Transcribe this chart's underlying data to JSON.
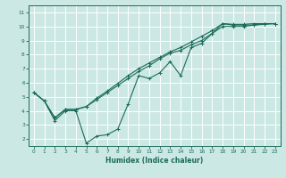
{
  "title": "",
  "xlabel": "Humidex (Indice chaleur)",
  "ylabel": "",
  "bg_color": "#cce8e4",
  "line_color": "#1a6b5a",
  "grid_color": "#ffffff",
  "xlim": [
    -0.5,
    23.5
  ],
  "ylim": [
    1.5,
    11.5
  ],
  "xticks": [
    0,
    1,
    2,
    3,
    4,
    5,
    6,
    7,
    8,
    9,
    10,
    11,
    12,
    13,
    14,
    15,
    16,
    17,
    18,
    19,
    20,
    21,
    22,
    23
  ],
  "yticks": [
    2,
    3,
    4,
    5,
    6,
    7,
    8,
    9,
    10,
    11
  ],
  "line1_x": [
    0,
    1,
    2,
    3,
    4,
    5,
    6,
    7,
    8,
    9,
    10,
    11,
    12,
    13,
    14,
    15,
    16,
    17,
    18,
    19,
    20,
    21,
    22,
    23
  ],
  "line1_y": [
    5.3,
    4.7,
    3.3,
    4.0,
    4.0,
    1.7,
    2.2,
    2.3,
    2.7,
    4.5,
    6.5,
    6.3,
    6.7,
    7.5,
    6.5,
    8.5,
    8.8,
    9.5,
    10.2,
    10.1,
    10.1,
    10.1,
    10.2,
    10.2
  ],
  "line2_x": [
    0,
    1,
    2,
    3,
    4,
    5,
    6,
    7,
    8,
    9,
    10,
    11,
    12,
    13,
    14,
    15,
    16,
    17,
    18,
    19,
    20,
    21,
    22,
    23
  ],
  "line2_y": [
    5.3,
    4.7,
    3.5,
    4.1,
    4.1,
    4.3,
    4.8,
    5.3,
    5.8,
    6.3,
    6.8,
    7.2,
    7.7,
    8.1,
    8.3,
    8.7,
    9.0,
    9.5,
    10.0,
    10.0,
    10.0,
    10.1,
    10.15,
    10.2
  ],
  "line3_x": [
    0,
    1,
    2,
    3,
    4,
    5,
    6,
    7,
    8,
    9,
    10,
    11,
    12,
    13,
    14,
    15,
    16,
    17,
    18,
    19,
    20,
    21,
    22,
    23
  ],
  "line3_y": [
    5.3,
    4.7,
    3.5,
    4.1,
    4.1,
    4.3,
    4.9,
    5.4,
    5.95,
    6.5,
    7.0,
    7.4,
    7.8,
    8.2,
    8.5,
    8.9,
    9.3,
    9.7,
    10.2,
    10.15,
    10.15,
    10.2,
    10.2,
    10.2
  ],
  "label_fontsize": 4.2,
  "xlabel_fontsize": 5.5,
  "tick_fontsize": 4.2,
  "linewidth": 0.8,
  "markersize": 2.5
}
